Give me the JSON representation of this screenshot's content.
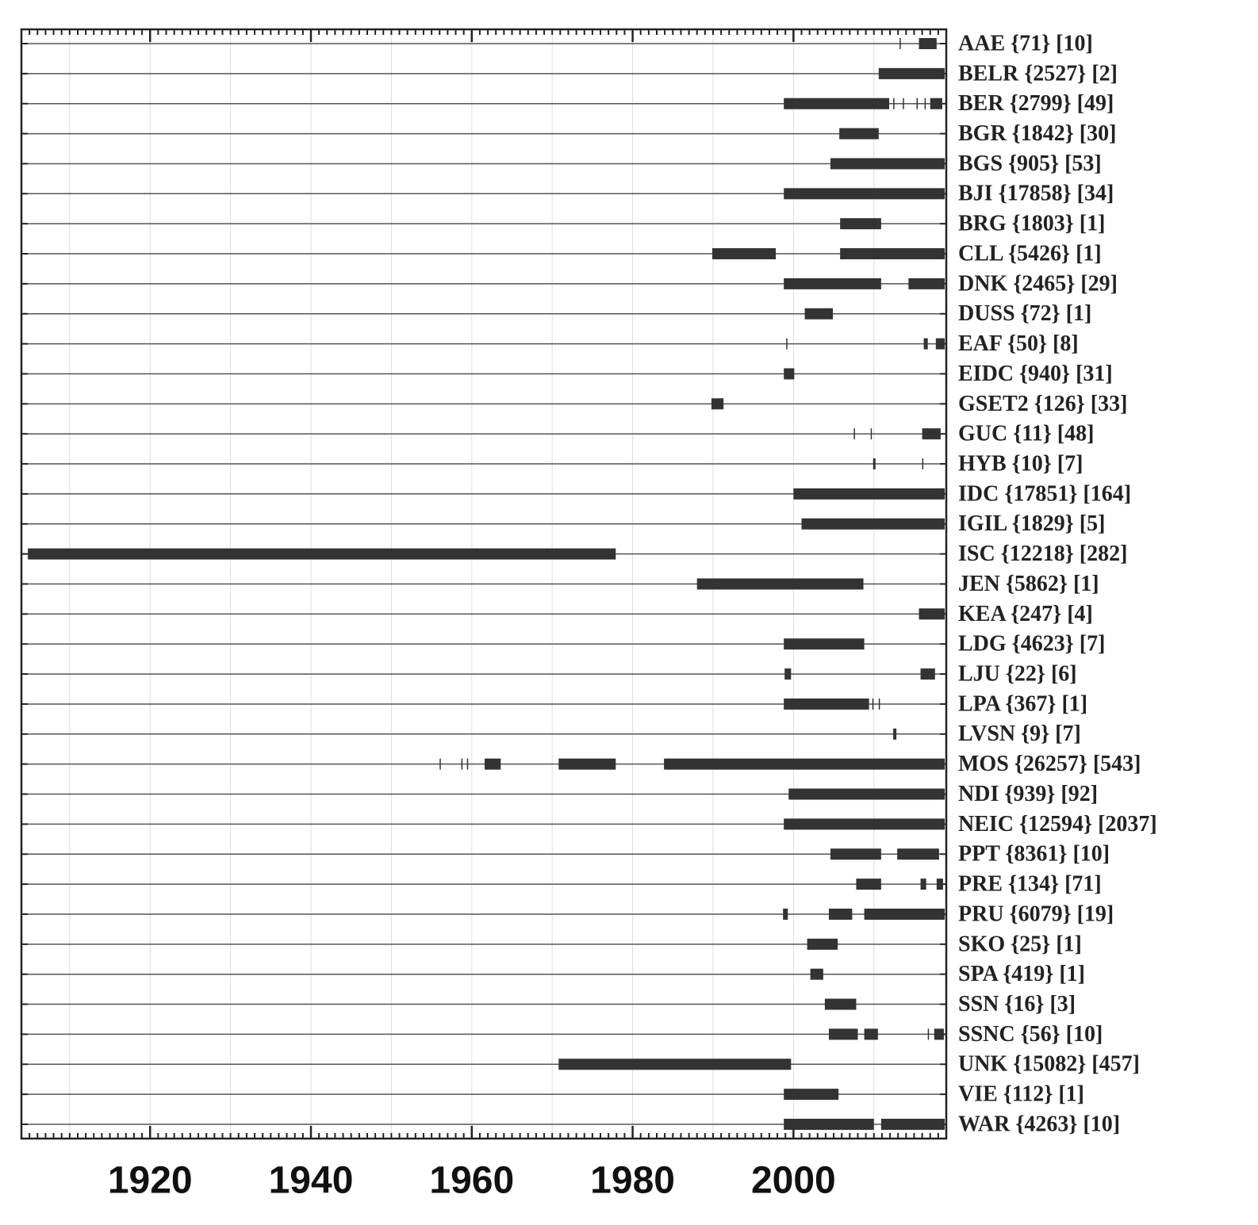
{
  "chart_data": {
    "type": "timeline",
    "xlim": [
      1904,
      2019
    ],
    "xticks": [
      1920,
      1940,
      1960,
      1980,
      2000
    ],
    "gridlines": [
      1910,
      1920,
      1930,
      1940,
      1950,
      1960,
      1970,
      1980,
      1990,
      2000,
      2010
    ],
    "minor_xticks": [
      1905,
      1906,
      1907,
      1908,
      1909,
      1910,
      1911,
      1912,
      1913,
      1914,
      1915,
      1916,
      1917,
      1918,
      1919,
      1920,
      1921,
      1922,
      1923,
      1924,
      1925,
      1926,
      1927,
      1928,
      1929,
      1930,
      1931,
      1932,
      1933,
      1934,
      1935,
      1936,
      1937,
      1938,
      1939,
      1940,
      1941,
      1942,
      1943,
      1944,
      1945,
      1946,
      1947,
      1948,
      1949,
      1950,
      1951,
      1952,
      1953,
      1954,
      1955,
      1956,
      1957,
      1958,
      1959,
      1960,
      1961,
      1962,
      1963,
      1964,
      1965,
      1966,
      1967,
      1968,
      1969,
      1970,
      1971,
      1972,
      1973,
      1974,
      1975,
      1976,
      1977,
      1978,
      1979,
      1980,
      1981,
      1982,
      1983,
      1984,
      1985,
      1986,
      1987,
      1988,
      1989,
      1990,
      1991,
      1992,
      1993,
      1994,
      1995,
      1996,
      1997,
      1998,
      1999,
      2000,
      2001,
      2002,
      2003,
      2004,
      2005,
      2006,
      2007,
      2008,
      2009,
      2010,
      2011,
      2012,
      2013,
      2014,
      2015,
      2016,
      2017,
      2018
    ],
    "color": "#333333",
    "grid": true,
    "rows": [
      {
        "label": "AAE {71} [10]",
        "segments": [
          [
            2013.2,
            2013.3
          ],
          [
            2015.6,
            2017.8
          ]
        ]
      },
      {
        "label": "BELR {2527} [2]",
        "segments": [
          [
            2010.6,
            2018.8
          ]
        ]
      },
      {
        "label": "BER {2799} [49]",
        "segments": [
          [
            1998.8,
            2011.9
          ],
          [
            2012.4,
            2012.5
          ],
          [
            2013.6,
            2013.7
          ],
          [
            2015.3,
            2015.4
          ],
          [
            2016.3,
            2016.4
          ],
          [
            2017.0,
            2018.5
          ]
        ]
      },
      {
        "label": "BGR {1842} [30]",
        "segments": [
          [
            2005.7,
            2010.6
          ]
        ]
      },
      {
        "label": "BGS {905} [53]",
        "segments": [
          [
            2004.6,
            2018.8
          ]
        ]
      },
      {
        "label": "BJI {17858} [34]",
        "segments": [
          [
            1998.8,
            2018.8
          ]
        ]
      },
      {
        "label": "BRG {1803} [1]",
        "segments": [
          [
            2005.8,
            2010.9
          ]
        ]
      },
      {
        "label": "CLL {5426} [1]",
        "segments": [
          [
            1989.9,
            1997.8
          ],
          [
            2005.8,
            2018.8
          ]
        ]
      },
      {
        "label": "DNK {2465} [29]",
        "segments": [
          [
            1998.8,
            2010.9
          ],
          [
            2014.3,
            2018.8
          ]
        ]
      },
      {
        "label": "DUSS {72} [1]",
        "segments": [
          [
            2001.4,
            2004.9
          ]
        ]
      },
      {
        "label": "EAF {50} [8]",
        "segments": [
          [
            1999.1,
            1999.2
          ],
          [
            2016.2,
            2016.7
          ],
          [
            2017.7,
            2018.8
          ]
        ]
      },
      {
        "label": "EIDC {940} [31]",
        "segments": [
          [
            1998.8,
            2000.1
          ]
        ]
      },
      {
        "label": "GSET2 {126} [33]",
        "segments": [
          [
            1989.8,
            1991.3
          ]
        ]
      },
      {
        "label": "GUC {11} [48]",
        "segments": [
          [
            2007.5,
            2007.6
          ],
          [
            2009.6,
            2009.7
          ],
          [
            2016.0,
            2018.3
          ]
        ]
      },
      {
        "label": "HYB {10} [7]",
        "segments": [
          [
            2009.9,
            2010.2
          ],
          [
            2016.0,
            2016.1
          ]
        ]
      },
      {
        "label": "IDC {17851} [164]",
        "segments": [
          [
            2000.0,
            2018.8
          ]
        ]
      },
      {
        "label": "IGIL {1829} [5]",
        "segments": [
          [
            2001.0,
            2018.8
          ]
        ]
      },
      {
        "label": "ISC {12218} [282]",
        "segments": [
          [
            1904.8,
            1977.9
          ]
        ]
      },
      {
        "label": "JEN {5862} [1]",
        "segments": [
          [
            1988.0,
            2008.7
          ]
        ]
      },
      {
        "label": "KEA {247} [4]",
        "segments": [
          [
            2015.6,
            2018.8
          ]
        ]
      },
      {
        "label": "LDG {4623} [7]",
        "segments": [
          [
            1998.8,
            2008.8
          ]
        ]
      },
      {
        "label": "LJU {22} [6]",
        "segments": [
          [
            1998.9,
            1999.7
          ],
          [
            2015.8,
            2017.6
          ]
        ]
      },
      {
        "label": "LPA {367} [1]",
        "segments": [
          [
            1998.8,
            2009.4
          ],
          [
            2009.8,
            2009.9
          ],
          [
            2010.6,
            2010.7
          ]
        ]
      },
      {
        "label": "LVSN {9} [7]",
        "segments": [
          [
            2012.4,
            2012.8
          ]
        ]
      },
      {
        "label": "MOS {26257} [543]",
        "segments": [
          [
            1956.0,
            1956.1
          ],
          [
            1958.7,
            1958.8
          ],
          [
            1959.4,
            1959.5
          ],
          [
            1961.6,
            1963.6
          ],
          [
            1970.8,
            1977.9
          ],
          [
            1983.9,
            2018.8
          ]
        ]
      },
      {
        "label": "NDI {939} [92]",
        "segments": [
          [
            1999.4,
            2018.8
          ]
        ]
      },
      {
        "label": "NEIC {12594} [2037]",
        "segments": [
          [
            1998.8,
            2018.8
          ]
        ]
      },
      {
        "label": "PPT {8361} [10]",
        "segments": [
          [
            2004.6,
            2010.9
          ],
          [
            2012.9,
            2018.1
          ]
        ]
      },
      {
        "label": "PRE {134} [71]",
        "segments": [
          [
            2007.8,
            2010.9
          ],
          [
            2015.8,
            2016.5
          ],
          [
            2017.8,
            2018.6
          ]
        ]
      },
      {
        "label": "PRU {6079} [19]",
        "segments": [
          [
            1998.7,
            1999.3
          ],
          [
            2004.4,
            2007.3
          ],
          [
            2008.8,
            2018.8
          ]
        ]
      },
      {
        "label": "SKO {25} [1]",
        "segments": [
          [
            2001.7,
            2005.5
          ]
        ]
      },
      {
        "label": "SPA {419} [1]",
        "segments": [
          [
            2002.1,
            2003.7
          ]
        ]
      },
      {
        "label": "SSN {16} [3]",
        "segments": [
          [
            2003.9,
            2007.8
          ]
        ]
      },
      {
        "label": "SSNC {56} [10]",
        "segments": [
          [
            2004.4,
            2008.0
          ],
          [
            2008.8,
            2010.5
          ],
          [
            2016.7,
            2016.8
          ],
          [
            2017.5,
            2018.7
          ]
        ]
      },
      {
        "label": "UNK {15082} [457]",
        "segments": [
          [
            1970.8,
            1999.7
          ]
        ]
      },
      {
        "label": "VIE {112} [1]",
        "segments": [
          [
            1998.8,
            2005.6
          ]
        ]
      },
      {
        "label": "WAR {4263} [10]",
        "segments": [
          [
            1998.8,
            2010.0
          ],
          [
            2010.9,
            2018.8
          ]
        ]
      }
    ]
  }
}
